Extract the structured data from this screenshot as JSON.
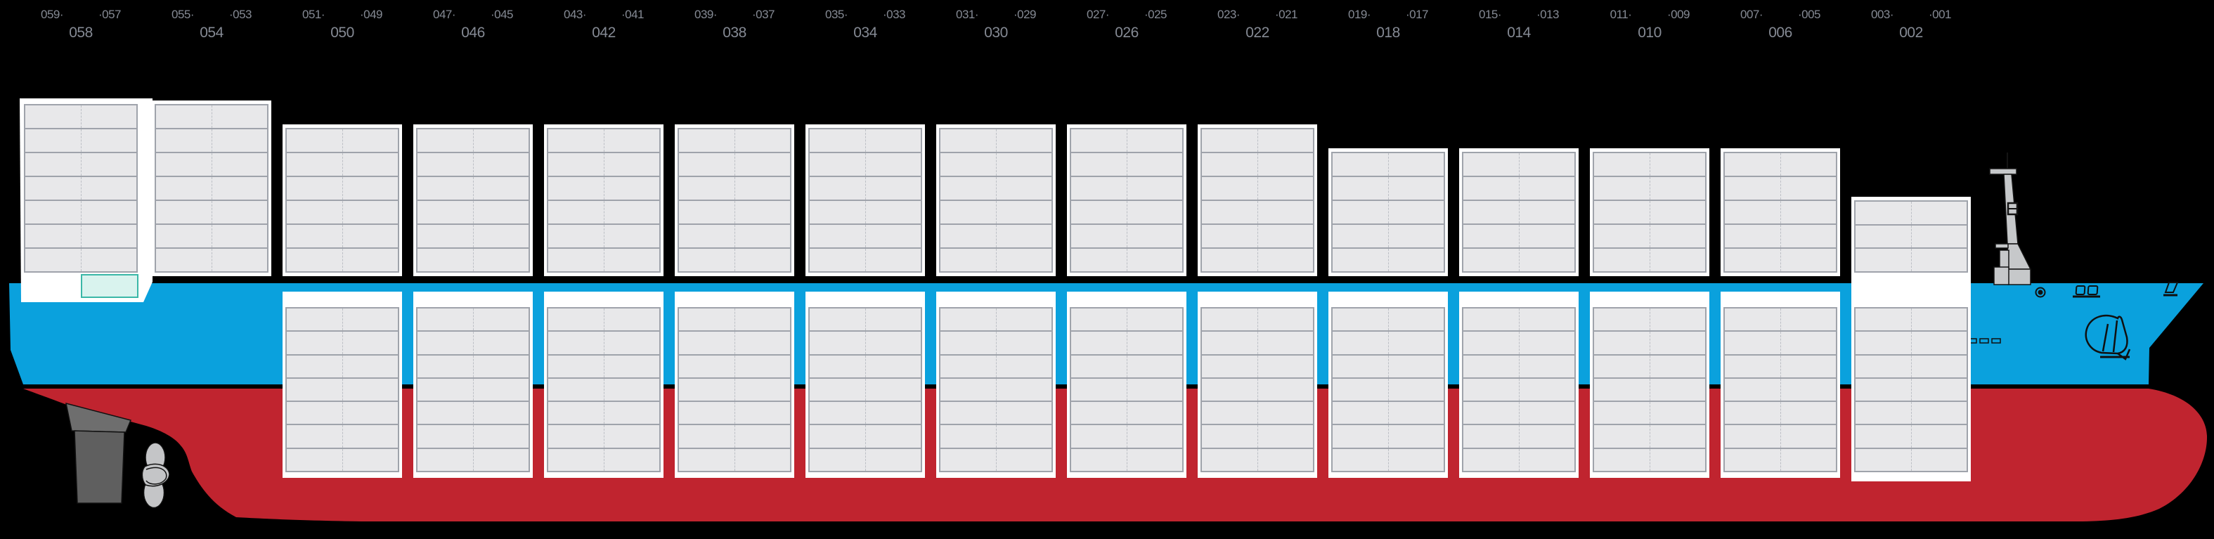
{
  "diagram": {
    "kind": "container-vessel-side-profile",
    "orientation": "bow-right",
    "columns_per_bay": 2,
    "highlighted_slot": {
      "bay": "058",
      "column": "right",
      "location": "below deck stack, bottom tier"
    }
  },
  "bays": [
    {
      "id": "058",
      "label_left": "059·",
      "label_right": "·057",
      "label_center": "058",
      "deck_rows": 7,
      "hold_rows": 0,
      "combined_panel": false
    },
    {
      "id": "054",
      "label_left": "055·",
      "label_right": "·053",
      "label_center": "054",
      "deck_rows": 7,
      "hold_rows": 0,
      "combined_panel": false
    },
    {
      "id": "050",
      "label_left": "051·",
      "label_right": "·049",
      "label_center": "050",
      "deck_rows": 6,
      "hold_rows": 7,
      "combined_panel": false
    },
    {
      "id": "046",
      "label_left": "047·",
      "label_right": "·045",
      "label_center": "046",
      "deck_rows": 6,
      "hold_rows": 7,
      "combined_panel": false
    },
    {
      "id": "042",
      "label_left": "043·",
      "label_right": "·041",
      "label_center": "042",
      "deck_rows": 6,
      "hold_rows": 7,
      "combined_panel": false
    },
    {
      "id": "038",
      "label_left": "039·",
      "label_right": "·037",
      "label_center": "038",
      "deck_rows": 6,
      "hold_rows": 7,
      "combined_panel": false
    },
    {
      "id": "034",
      "label_left": "035·",
      "label_right": "·033",
      "label_center": "034",
      "deck_rows": 6,
      "hold_rows": 7,
      "combined_panel": false
    },
    {
      "id": "030",
      "label_left": "031·",
      "label_right": "·029",
      "label_center": "030",
      "deck_rows": 6,
      "hold_rows": 7,
      "combined_panel": false
    },
    {
      "id": "026",
      "label_left": "027·",
      "label_right": "·025",
      "label_center": "026",
      "deck_rows": 6,
      "hold_rows": 7,
      "combined_panel": false
    },
    {
      "id": "022",
      "label_left": "023·",
      "label_right": "·021",
      "label_center": "022",
      "deck_rows": 6,
      "hold_rows": 7,
      "combined_panel": false
    },
    {
      "id": "018",
      "label_left": "019·",
      "label_right": "·017",
      "label_center": "018",
      "deck_rows": 5,
      "hold_rows": 7,
      "combined_panel": false
    },
    {
      "id": "014",
      "label_left": "015·",
      "label_right": "·013",
      "label_center": "014",
      "deck_rows": 5,
      "hold_rows": 7,
      "combined_panel": false
    },
    {
      "id": "010",
      "label_left": "011·",
      "label_right": "·009",
      "label_center": "010",
      "deck_rows": 5,
      "hold_rows": 7,
      "combined_panel": false
    },
    {
      "id": "006",
      "label_left": "007·",
      "label_right": "·005",
      "label_center": "006",
      "deck_rows": 5,
      "hold_rows": 7,
      "combined_panel": false
    },
    {
      "id": "002",
      "label_left": "003·",
      "label_right": "·001",
      "label_center": "002",
      "deck_rows": 3,
      "hold_rows": 7,
      "combined_panel": true
    }
  ],
  "colors": {
    "background": "#000000",
    "hull_blue": "#0aa1dd",
    "hull_red": "#c0242f",
    "panel_white": "#ffffff",
    "slot_fill": "#e8e8ea",
    "slot_line": "#9fa3ab",
    "slot_divider": "#bcbfc5",
    "highlight_fill": "#d9f3ee",
    "highlight_border": "#3ab7a7",
    "label_gray": "#858a94",
    "mast_gray": "#c6c8ca",
    "rudder_gray": "#5f5f5f",
    "propeller_gray": "#c4c5c7"
  }
}
